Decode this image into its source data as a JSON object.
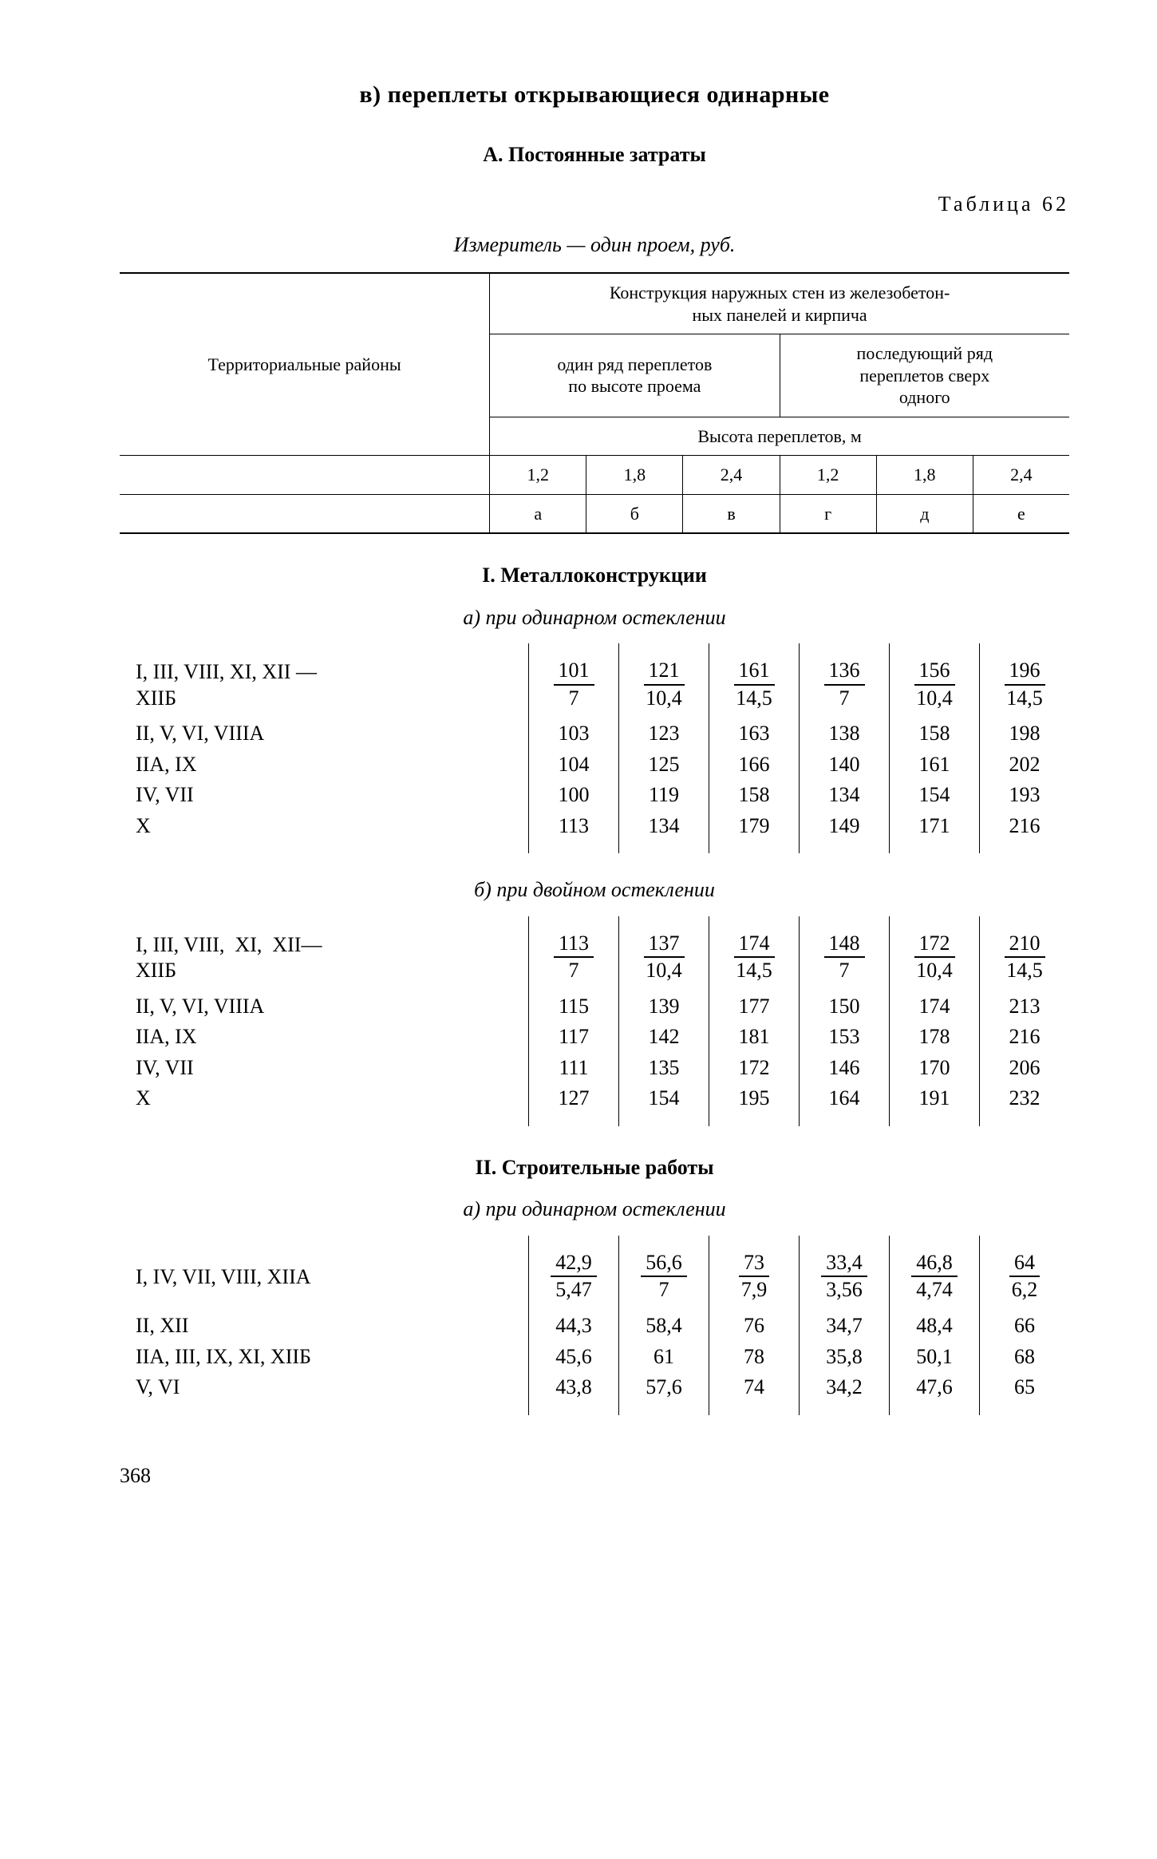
{
  "title_v": "в) переплеты открывающиеся одинарные",
  "title_a": "А. Постоянные затраты",
  "table_label": "Таблица 62",
  "meter": "Измеритель — один проем, руб.",
  "header": {
    "col0": "Территориальные районы",
    "span_top": "Конструкция наружных стен из железобетон-\nных панелей и кирпича",
    "span_left": "один ряд переплетов\nпо высоте проема",
    "span_right": "последующий ряд\nпереплетов сверх\nодного",
    "row_h": "Высота переплетов, м",
    "heights": [
      "1,2",
      "1,8",
      "2,4",
      "1,2",
      "1,8",
      "2,4"
    ],
    "letters": [
      "а",
      "б",
      "в",
      "г",
      "д",
      "е"
    ]
  },
  "sec_I": "I. Металлоконструкции",
  "sub_a": "а) при одинарном остеклении",
  "sub_b": "б) при двойном остеклении",
  "sec_II": "II. Строительные работы",
  "sub_IIa": "а) при одинарном остеклении",
  "blockA": {
    "row1_label": "I, III, VIII, XI, XII —\nXIIБ",
    "row1_top": [
      "101",
      "121",
      "161",
      "136",
      "156",
      "196"
    ],
    "row1_bot": [
      "7",
      "10,4",
      "14,5",
      "7",
      "10,4",
      "14,5"
    ],
    "rows": [
      {
        "label": "II, V, VI, VIIIA",
        "v": [
          "103",
          "123",
          "163",
          "138",
          "158",
          "198"
        ]
      },
      {
        "label": "IIА, IX",
        "v": [
          "104",
          "125",
          "166",
          "140",
          "161",
          "202"
        ]
      },
      {
        "label": "IV, VII",
        "v": [
          "100",
          "119",
          "158",
          "134",
          "154",
          "193"
        ]
      },
      {
        "label": "X",
        "v": [
          "113",
          "134",
          "179",
          "149",
          "171",
          "216"
        ]
      }
    ]
  },
  "blockB": {
    "row1_label": "I, III, VIII,  XI,  XII—\nXIIБ",
    "row1_top": [
      "113",
      "137",
      "174",
      "148",
      "172",
      "210"
    ],
    "row1_bot": [
      "7",
      "10,4",
      "14,5",
      "7",
      "10,4",
      "14,5"
    ],
    "rows": [
      {
        "label": "II, V, VI, VIIIA",
        "v": [
          "115",
          "139",
          "177",
          "150",
          "174",
          "213"
        ]
      },
      {
        "label": "IIА, IX",
        "v": [
          "117",
          "142",
          "181",
          "153",
          "178",
          "216"
        ]
      },
      {
        "label": "IV, VII",
        "v": [
          "111",
          "135",
          "172",
          "146",
          "170",
          "206"
        ]
      },
      {
        "label": "X",
        "v": [
          "127",
          "154",
          "195",
          "164",
          "191",
          "232"
        ]
      }
    ]
  },
  "blockC": {
    "row1_label": "I, IV, VII, VIII, XIIA",
    "row1_top": [
      "42,9",
      "56,6",
      "73",
      "33,4",
      "46,8",
      "64"
    ],
    "row1_bot": [
      "5,47",
      "7",
      "7,9",
      "3,56",
      "4,74",
      "6,2"
    ],
    "rows": [
      {
        "label": "II, XII",
        "v": [
          "44,3",
          "58,4",
          "76",
          "34,7",
          "48,4",
          "66"
        ]
      },
      {
        "label": "IIА, III, IX, XI, XIIБ",
        "v": [
          "45,6",
          "61",
          "78",
          "35,8",
          "50,1",
          "68"
        ]
      },
      {
        "label": "V, VI",
        "v": [
          "43,8",
          "57,6",
          "74",
          "34,2",
          "47,6",
          "65"
        ]
      }
    ]
  },
  "page": "368"
}
